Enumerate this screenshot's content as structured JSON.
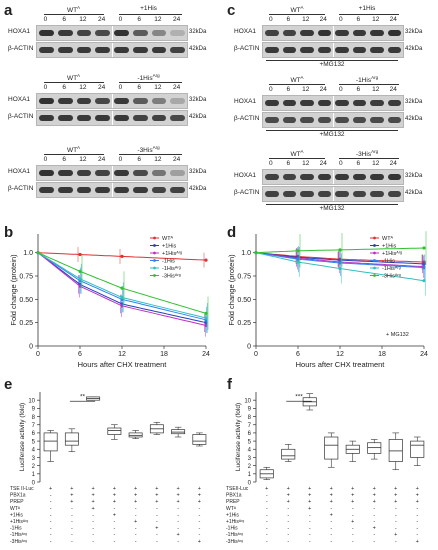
{
  "panel_labels": {
    "a": "a",
    "b": "b",
    "c": "c",
    "d": "d",
    "e": "e",
    "f": "f"
  },
  "blots": {
    "timepoints": [
      "0",
      "6",
      "12",
      "24 h"
    ],
    "timepoints_plain": [
      "0",
      "6",
      "12",
      "24"
    ],
    "hoxa1": "HOXA1",
    "actin": "β-ACTIN",
    "kda32": "32kDa",
    "kda42": "42kDa",
    "wt": "WT",
    "wt_sup": "A",
    "mg132": "+MG132",
    "groups": {
      "plus1his": "+1His",
      "minus1his": "-1His",
      "minus3his": "-3His",
      "arg_sup": "Arg"
    }
  },
  "legend_b": [
    "WTᴬ",
    "+1His",
    "+1Hisᴬʳᵍ",
    "-1His",
    "-1Hisᴬʳᵍ",
    "-3Hisᴬʳᵍ"
  ],
  "legend_colors": [
    "#e03030",
    "#2040c0",
    "#c030c0",
    "#3080f0",
    "#30c0c0",
    "#30c030"
  ],
  "mg132_note": "+ MG132",
  "chart_data": [
    {
      "type": "line",
      "panel": "b",
      "ylabel": "Fold change (protein)",
      "xlabel": "Hours after CHX treatment",
      "x": [
        0,
        6,
        12,
        24
      ],
      "xticks": [
        0,
        6,
        12,
        18,
        24
      ],
      "yticks": [
        0,
        0.25,
        0.5,
        0.75,
        1.0
      ],
      "ylim": [
        0,
        1.2
      ],
      "xlim": [
        0,
        24
      ],
      "series": [
        {
          "name": "WTᴬ",
          "values": [
            1.0,
            0.98,
            0.96,
            0.92
          ]
        },
        {
          "name": "+1His",
          "values": [
            1.0,
            0.66,
            0.45,
            0.25
          ]
        },
        {
          "name": "+1Hisᴬʳᵍ",
          "values": [
            1.0,
            0.64,
            0.43,
            0.22
          ]
        },
        {
          "name": "-1His",
          "values": [
            1.0,
            0.7,
            0.5,
            0.28
          ]
        },
        {
          "name": "-1Hisᴬʳᵍ",
          "values": [
            1.0,
            0.72,
            0.52,
            0.3
          ]
        },
        {
          "name": "-3Hisᴬʳᵍ",
          "values": [
            1.0,
            0.8,
            0.62,
            0.35
          ]
        }
      ]
    },
    {
      "type": "line",
      "panel": "d",
      "ylabel": "Fold change (protein)",
      "xlabel": "Hours after CHX treatment",
      "x": [
        0,
        6,
        12,
        24
      ],
      "xticks": [
        0,
        6,
        12,
        18,
        24
      ],
      "yticks": [
        0,
        0.25,
        0.5,
        0.75,
        1.0
      ],
      "ylim": [
        0,
        1.2
      ],
      "xlim": [
        0,
        24
      ],
      "series": [
        {
          "name": "WTᴬ",
          "values": [
            1.0,
            0.96,
            0.93,
            0.9
          ]
        },
        {
          "name": "+1His",
          "values": [
            1.0,
            0.95,
            0.92,
            0.88
          ]
        },
        {
          "name": "+1Hisᴬʳᵍ",
          "values": [
            1.0,
            0.94,
            0.9,
            0.85
          ]
        },
        {
          "name": "-1His",
          "values": [
            1.0,
            0.93,
            0.89,
            0.84
          ]
        },
        {
          "name": "-1Hisᴬʳᵍ",
          "values": [
            1.0,
            0.9,
            0.83,
            0.7
          ]
        },
        {
          "name": "-3Hisᴬʳᵍ",
          "values": [
            1.0,
            1.02,
            1.03,
            1.05
          ]
        }
      ]
    },
    {
      "type": "box",
      "panel": "e",
      "ylabel": "Luciferase activity (fold)",
      "yticks": [
        0,
        1,
        2,
        3,
        4,
        5,
        6,
        7,
        8,
        9,
        10
      ],
      "ylim": [
        0,
        11
      ],
      "significance": "**",
      "boxes": [
        {
          "min": 2.5,
          "q1": 3.8,
          "median": 5.0,
          "q3": 6.0,
          "max": 6.3
        },
        {
          "min": 3.7,
          "q1": 4.5,
          "median": 5.0,
          "q3": 6.0,
          "max": 6.5
        },
        {
          "min": 10.0,
          "q1": 10.0,
          "median": 10.2,
          "q3": 10.4,
          "max": 10.4
        },
        {
          "min": 5.2,
          "q1": 5.8,
          "median": 6.3,
          "q3": 6.6,
          "max": 7.0
        },
        {
          "min": 5.3,
          "q1": 5.5,
          "median": 5.7,
          "q3": 6.0,
          "max": 6.3
        },
        {
          "min": 5.8,
          "q1": 6.0,
          "median": 6.5,
          "q3": 7.0,
          "max": 7.3
        },
        {
          "min": 5.5,
          "q1": 5.9,
          "median": 6.1,
          "q3": 6.4,
          "max": 6.7
        },
        {
          "min": 4.4,
          "q1": 4.6,
          "median": 5.0,
          "q3": 5.8,
          "max": 6.0
        }
      ]
    },
    {
      "type": "box",
      "panel": "f",
      "ylabel": "Luciferase activity (fold)",
      "yticks": [
        0,
        1,
        2,
        3,
        4,
        5,
        6,
        7,
        8,
        9,
        10
      ],
      "ylim": [
        0,
        11
      ],
      "significance": "***",
      "boxes": [
        {
          "min": 0.3,
          "q1": 0.5,
          "median": 1.0,
          "q3": 1.5,
          "max": 1.8
        },
        {
          "min": 2.5,
          "q1": 2.8,
          "median": 3.2,
          "q3": 4.0,
          "max": 4.6
        },
        {
          "min": 8.8,
          "q1": 9.3,
          "median": 9.8,
          "q3": 10.3,
          "max": 10.8
        },
        {
          "min": 1.8,
          "q1": 2.8,
          "median": 4.5,
          "q3": 5.5,
          "max": 6.0
        },
        {
          "min": 2.5,
          "q1": 3.5,
          "median": 4.0,
          "q3": 4.5,
          "max": 5.0
        },
        {
          "min": 2.8,
          "q1": 3.5,
          "median": 4.2,
          "q3": 4.8,
          "max": 5.2
        },
        {
          "min": 1.5,
          "q1": 2.5,
          "median": 3.8,
          "q3": 5.2,
          "max": 6.0
        },
        {
          "min": 2.0,
          "q1": 3.0,
          "median": 4.5,
          "q3": 5.0,
          "max": 5.5
        }
      ]
    }
  ],
  "table_e": {
    "rows": [
      "TSE II-Luc",
      "PBX1a",
      "PREP",
      "WTᴬ",
      "+1His",
      "+1Hisᴬʳᵍ",
      "-1His",
      "-1Hisᴬʳᵍ",
      "-3Hisᴬʳᵍ"
    ],
    "signs": [
      [
        "+",
        "+",
        "+",
        "+",
        "+",
        "+",
        "+",
        "+"
      ],
      [
        "-",
        "+",
        "+",
        "+",
        "+",
        "+",
        "+",
        "+"
      ],
      [
        "-",
        "+",
        "+",
        "+",
        "+",
        "+",
        "+",
        "+"
      ],
      [
        "-",
        "-",
        "+",
        "-",
        "-",
        "-",
        "-",
        "-"
      ],
      [
        "-",
        "-",
        "-",
        "+",
        "-",
        "-",
        "-",
        "-"
      ],
      [
        "-",
        "-",
        "-",
        "-",
        "+",
        "-",
        "-",
        "-"
      ],
      [
        "-",
        "-",
        "-",
        "-",
        "-",
        "+",
        "-",
        "-"
      ],
      [
        "-",
        "-",
        "-",
        "-",
        "-",
        "-",
        "+",
        "-"
      ],
      [
        "-",
        "-",
        "-",
        "-",
        "-",
        "-",
        "-",
        "+"
      ]
    ]
  },
  "table_f": {
    "rows": [
      "TSEII-Luc",
      "PBX1a",
      "PREP",
      "WTᴬ",
      "+1His",
      "+1Hisᴬʳᵍ",
      "-1His",
      "-1Hisᴬʳᵍ",
      "-3Hisᴬʳᵍ"
    ],
    "signs": [
      [
        "+",
        "+",
        "+",
        "+",
        "+",
        "+",
        "+",
        "+"
      ],
      [
        "-",
        "+",
        "+",
        "+",
        "+",
        "+",
        "+",
        "+"
      ],
      [
        "-",
        "+",
        "+",
        "+",
        "+",
        "+",
        "+",
        "+"
      ],
      [
        "-",
        "-",
        "+",
        "-",
        "-",
        "-",
        "-",
        "-"
      ],
      [
        "-",
        "-",
        "-",
        "+",
        "-",
        "-",
        "-",
        "-"
      ],
      [
        "-",
        "-",
        "-",
        "-",
        "+",
        "-",
        "-",
        "-"
      ],
      [
        "-",
        "-",
        "-",
        "-",
        "-",
        "+",
        "-",
        "-"
      ],
      [
        "-",
        "-",
        "-",
        "-",
        "-",
        "-",
        "+",
        "-"
      ],
      [
        "-",
        "-",
        "-",
        "-",
        "-",
        "-",
        "-",
        "+"
      ]
    ]
  }
}
